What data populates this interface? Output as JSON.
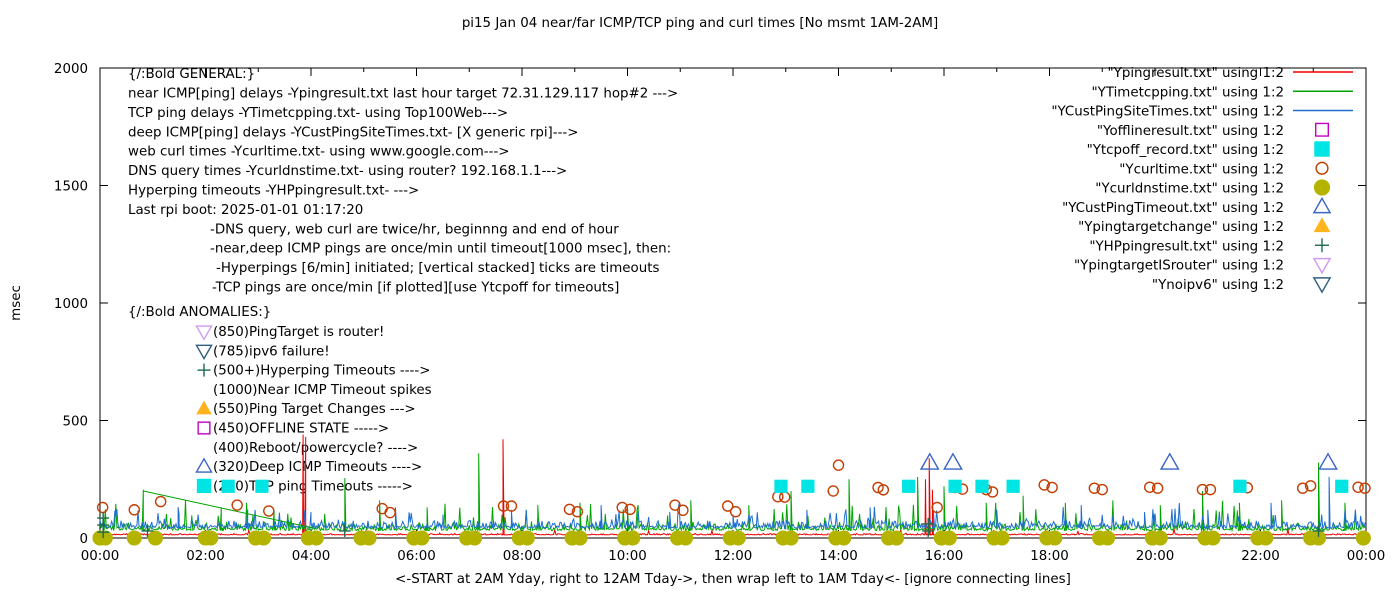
{
  "title": "pi15 Jan 04  near/far ICMP/TCP ping and curl times [No msmt 1AM-2AM]",
  "ylabel": "msec",
  "xlabel": "<-START at 2AM Yday, right to 12AM Tday->, then wrap left to 1AM Tday<- [ignore connecting lines]",
  "axes": {
    "y_ticks": [
      0,
      500,
      1000,
      1500,
      2000
    ],
    "y_max": 2000,
    "x_tick_labels": [
      "00:00",
      "02:00",
      "04:00",
      "06:00",
      "08:00",
      "10:00",
      "12:00",
      "14:00",
      "16:00",
      "18:00",
      "20:00",
      "22:00",
      "00:00"
    ],
    "x_hours": 24,
    "grid": false
  },
  "general": {
    "heading": "{/:Bold GENERAL:}",
    "lines": [
      {
        "text": "near ICMP[ping] delays -Ypingresult.txt last hour target 72.31.129.117 hop#2 --->",
        "indent": 0
      },
      {
        "text": "TCP ping delays -YTimetcpping.txt- using Top100Web--->",
        "indent": 0
      },
      {
        "text": "deep ICMP[ping] delays -YCustPingSiteTimes.txt- [X generic rpi]--->",
        "indent": 0
      },
      {
        "text": "web curl times -Ycurltime.txt- using www.google.com--->",
        "indent": 0
      },
      {
        "text": "DNS query times -Ycurldnstime.txt- using router? 192.168.1.1--->",
        "indent": 0
      },
      {
        "text": "Hyperping timeouts -YHPpingresult.txt- --->",
        "indent": 0
      },
      {
        "text": "Last rpi boot: 2025-01-01 01:17:20",
        "indent": 0
      },
      {
        "text": "-DNS query, web curl are twice/hr, beginnng and end of hour",
        "indent": 82
      },
      {
        "text": "-near,deep ICMP pings are once/min until timeout[1000 msec], then:",
        "indent": 82
      },
      {
        "text": "-Hyperpings [6/min] initiated; [vertical stacked] ticks are timeouts",
        "indent": 88
      },
      {
        "text": "-TCP pings are once/min [if plotted][use Ytcpoff for timeouts]",
        "indent": 84
      }
    ]
  },
  "anomalies": {
    "heading": "{/:Bold ANOMALIES:}",
    "lines": [
      {
        "marker": "tri-down-open",
        "color": "#cf9af2",
        "text": "(850)PingTarget is router!"
      },
      {
        "marker": "tri-down-open",
        "color": "#2f5f7f",
        "text": "(785)ipv6 failure!"
      },
      {
        "marker": "plus",
        "color": "#1d6b4c",
        "text": "(500+)Hyperping Timeouts ---->"
      },
      {
        "marker": "none",
        "color": "#000000",
        "text": "(1000)Near ICMP Timeout spikes"
      },
      {
        "marker": "tri-up-filled",
        "color": "#ffb41e",
        "text": "(550)Ping Target Changes --->"
      },
      {
        "marker": "square-open",
        "color": "#c400c4",
        "text": "(450)OFFLINE STATE ----->"
      },
      {
        "marker": "none",
        "color": "#000000",
        "text": "(400)Reboot/powercycle? ---->"
      },
      {
        "marker": "tri-up-open",
        "color": "#3a64c8",
        "text": "(320)Deep ICMP Timeouts ---->"
      },
      {
        "marker": "square-filled",
        "color": "#00e4e4",
        "text": "(220)TCP ping Timeouts ----->"
      }
    ]
  },
  "legend": [
    {
      "label": "\"Ypingresult.txt\" using 1:2",
      "marker": "line",
      "color": "#ee0000"
    },
    {
      "label": "\"YTimetcpping.txt\" using 1:2",
      "marker": "line",
      "color": "#00a400"
    },
    {
      "label": "\"YCustPingSiteTimes.txt\" using 1:2",
      "marker": "line",
      "color": "#1f6fd0"
    },
    {
      "label": "\"Yofflineresult.txt\" using 1:2",
      "marker": "square-open",
      "color": "#c400c4"
    },
    {
      "label": "\"Ytcpoff_record.txt\" using 1:2",
      "marker": "square-filled",
      "color": "#00e4e4"
    },
    {
      "label": "\"Ycurltime.txt\" using 1:2",
      "marker": "circle-open",
      "color": "#c43c00"
    },
    {
      "label": "\"Ycurldnstime.txt\" using 1:2",
      "marker": "circle-filled",
      "color": "#b4b400"
    },
    {
      "label": "\"YCustPingTimeout.txt\" using 1:2",
      "marker": "tri-up-open",
      "color": "#3a64c8"
    },
    {
      "label": "\"Ypingtargetchange\" using 1:2",
      "marker": "tri-up-filled",
      "color": "#ffb41e"
    },
    {
      "label": "\"YHPpingresult.txt\" using 1:2",
      "marker": "plus",
      "color": "#1d6b4c"
    },
    {
      "label": "\"YpingtargetISrouter\" using 1:2",
      "marker": "tri-down-open",
      "color": "#cf9af2"
    },
    {
      "label": "\"Ynoipv6\" using 1:2",
      "marker": "tri-down-open",
      "color": "#2f5f7f"
    }
  ],
  "chart_data": {
    "type": "line",
    "x_axis": "time of day, hours 0-24 (wrapped: starts 2AM yesterday)",
    "ylabel": "msec",
    "ylim": [
      0,
      2000
    ],
    "noise_seed": 20250104,
    "series": [
      {
        "name": "Ypingresult near ICMP ping",
        "style": "line",
        "color": "#ee0000",
        "base": 13,
        "noise": 6,
        "spike_prob": 0.012,
        "spike_amp": 25,
        "spikes": [
          [
            3.85,
            440
          ],
          [
            3.9,
            430
          ],
          [
            7.64,
            420
          ],
          [
            15.65,
            250
          ],
          [
            15.72,
            340
          ],
          [
            15.78,
            205
          ]
        ]
      },
      {
        "name": "YTimetcpping TCP ping",
        "style": "line",
        "color": "#00a400",
        "base": 32,
        "noise": 30,
        "spike_prob": 0.065,
        "spike_amp": 110,
        "spikes": [
          [
            0.82,
            205
          ],
          [
            2.3,
            130
          ],
          [
            3.3,
            120
          ],
          [
            4.64,
            255
          ],
          [
            5.3,
            160
          ],
          [
            6.2,
            130
          ],
          [
            7.18,
            360
          ],
          [
            8.3,
            140
          ],
          [
            9.1,
            150
          ],
          [
            10.0,
            130
          ],
          [
            11.2,
            160
          ],
          [
            12.3,
            140
          ],
          [
            13.1,
            200
          ],
          [
            14.2,
            250
          ],
          [
            15.5,
            260
          ],
          [
            16.0,
            220
          ],
          [
            16.8,
            150
          ],
          [
            17.5,
            180
          ],
          [
            18.3,
            150
          ],
          [
            19.2,
            160
          ],
          [
            20.1,
            140
          ],
          [
            20.9,
            200
          ],
          [
            21.6,
            150
          ],
          [
            22.4,
            160
          ],
          [
            23.1,
            320
          ],
          [
            23.6,
            150
          ]
        ]
      },
      {
        "name": "YCustPingSiteTimes deep ICMP ping",
        "style": "line",
        "color": "#1f6fd0",
        "base": 42,
        "noise": 32,
        "spike_prob": 0.075,
        "spike_amp": 80,
        "spikes": [
          [
            1.5,
            100
          ],
          [
            2.8,
            120
          ],
          [
            4.0,
            110
          ],
          [
            5.6,
            130
          ],
          [
            6.5,
            100
          ],
          [
            7.8,
            120
          ],
          [
            9.5,
            140
          ],
          [
            10.8,
            110
          ],
          [
            12.0,
            100
          ],
          [
            13.4,
            120
          ],
          [
            14.6,
            130
          ],
          [
            15.8,
            110
          ],
          [
            17.0,
            120
          ],
          [
            18.6,
            140
          ],
          [
            19.8,
            110
          ],
          [
            21.0,
            120
          ],
          [
            22.2,
            150
          ],
          [
            23.3,
            260
          ]
        ]
      }
    ],
    "extra_segments": [
      {
        "name": "wrap connecting line (ignore)",
        "color": "#00a400",
        "points": [
          [
            0.82,
            200
          ],
          [
            4.05,
            42
          ]
        ]
      }
    ],
    "scatter": [
      {
        "name": "Ycurltime web curl times",
        "marker": "circle-open",
        "color": "#c43c00",
        "points": [
          [
            0.05,
            130
          ],
          [
            0.65,
            120
          ],
          [
            1.15,
            155
          ],
          [
            2.6,
            140
          ],
          [
            3.2,
            115
          ],
          [
            5.35,
            125
          ],
          [
            5.5,
            108
          ],
          [
            7.65,
            136
          ],
          [
            7.8,
            136
          ],
          [
            8.9,
            122
          ],
          [
            9.05,
            112
          ],
          [
            9.9,
            130
          ],
          [
            10.05,
            122
          ],
          [
            10.9,
            140
          ],
          [
            11.05,
            118
          ],
          [
            11.9,
            136
          ],
          [
            12.05,
            112
          ],
          [
            12.85,
            176
          ],
          [
            12.98,
            174
          ],
          [
            13.9,
            200
          ],
          [
            14.0,
            310
          ],
          [
            14.75,
            215
          ],
          [
            14.85,
            205
          ],
          [
            15.87,
            130
          ],
          [
            16.2,
            215
          ],
          [
            16.35,
            208
          ],
          [
            16.8,
            206
          ],
          [
            16.92,
            196
          ],
          [
            17.9,
            226
          ],
          [
            18.05,
            215
          ],
          [
            18.85,
            212
          ],
          [
            19.0,
            206
          ],
          [
            19.9,
            216
          ],
          [
            20.05,
            212
          ],
          [
            20.9,
            206
          ],
          [
            21.05,
            206
          ],
          [
            21.75,
            214
          ],
          [
            22.8,
            212
          ],
          [
            22.95,
            222
          ],
          [
            23.85,
            216
          ],
          [
            23.98,
            212
          ]
        ]
      },
      {
        "name": "Ycurldnstime DNS query times",
        "marker": "circle-filled",
        "color": "#b4b400",
        "points": [
          [
            0.0,
            0
          ],
          [
            0.1,
            0
          ],
          [
            0.65,
            0
          ],
          [
            1.05,
            0
          ],
          [
            2.0,
            0
          ],
          [
            2.1,
            0
          ],
          [
            2.95,
            0
          ],
          [
            3.1,
            0
          ],
          [
            3.95,
            0
          ],
          [
            4.1,
            0
          ],
          [
            4.95,
            0
          ],
          [
            5.1,
            0
          ],
          [
            5.95,
            0
          ],
          [
            6.1,
            0
          ],
          [
            6.95,
            0
          ],
          [
            7.1,
            0
          ],
          [
            7.95,
            0
          ],
          [
            8.1,
            0
          ],
          [
            8.95,
            0
          ],
          [
            9.1,
            0
          ],
          [
            9.95,
            0
          ],
          [
            10.1,
            0
          ],
          [
            10.95,
            0
          ],
          [
            11.1,
            0
          ],
          [
            11.95,
            0
          ],
          [
            12.1,
            0
          ],
          [
            12.95,
            0
          ],
          [
            13.1,
            0
          ],
          [
            13.95,
            0
          ],
          [
            14.1,
            0
          ],
          [
            14.95,
            0
          ],
          [
            15.1,
            0
          ],
          [
            15.95,
            0
          ],
          [
            16.1,
            0
          ],
          [
            16.95,
            0
          ],
          [
            17.1,
            0
          ],
          [
            17.95,
            0
          ],
          [
            18.1,
            0
          ],
          [
            18.95,
            0
          ],
          [
            19.1,
            0
          ],
          [
            19.95,
            0
          ],
          [
            20.1,
            0
          ],
          [
            20.95,
            0
          ],
          [
            21.1,
            0
          ],
          [
            21.95,
            0
          ],
          [
            22.1,
            0
          ],
          [
            22.95,
            0
          ],
          [
            23.1,
            0
          ],
          [
            23.95,
            0
          ]
        ]
      },
      {
        "name": "Ytcpoff_record TCP ping timeouts",
        "marker": "square-filled",
        "color": "#00e4e4",
        "points": [
          [
            2.43,
            220
          ],
          [
            3.07,
            220
          ],
          [
            12.91,
            220
          ],
          [
            13.42,
            220
          ],
          [
            15.33,
            220
          ],
          [
            16.21,
            220
          ],
          [
            16.72,
            220
          ],
          [
            17.31,
            220
          ],
          [
            21.61,
            220
          ],
          [
            23.54,
            220
          ]
        ]
      },
      {
        "name": "YCustPingTimeout deep ICMP timeouts",
        "marker": "tri-up-open",
        "color": "#3a64c8",
        "points": [
          [
            15.73,
            320
          ],
          [
            16.17,
            320
          ],
          [
            20.28,
            320
          ],
          [
            23.28,
            320
          ]
        ]
      },
      {
        "name": "YHPpingresult hyperping timeout ticks",
        "marker": "plus",
        "color": "#1d6b4c",
        "points": [
          [
            0.06,
            25
          ],
          [
            0.06,
            55
          ],
          [
            0.06,
            85
          ],
          [
            0.9,
            30
          ],
          [
            4.64,
            30
          ],
          [
            15.7,
            30
          ],
          [
            15.7,
            60
          ],
          [
            23.1,
            30
          ]
        ]
      },
      {
        "name": "Yofflineresult offline state",
        "marker": "square-open",
        "color": "#c400c4",
        "points": []
      },
      {
        "name": "Ypingtargetchange",
        "marker": "tri-up-filled",
        "color": "#ffb41e",
        "points": []
      },
      {
        "name": "YpingtargetISrouter",
        "marker": "tri-down-open",
        "color": "#cf9af2",
        "points": []
      },
      {
        "name": "Ynoipv6",
        "marker": "tri-down-open",
        "color": "#2f5f7f",
        "points": []
      }
    ]
  },
  "plot": {
    "border_color": "#000000",
    "background": "#ffffff"
  }
}
